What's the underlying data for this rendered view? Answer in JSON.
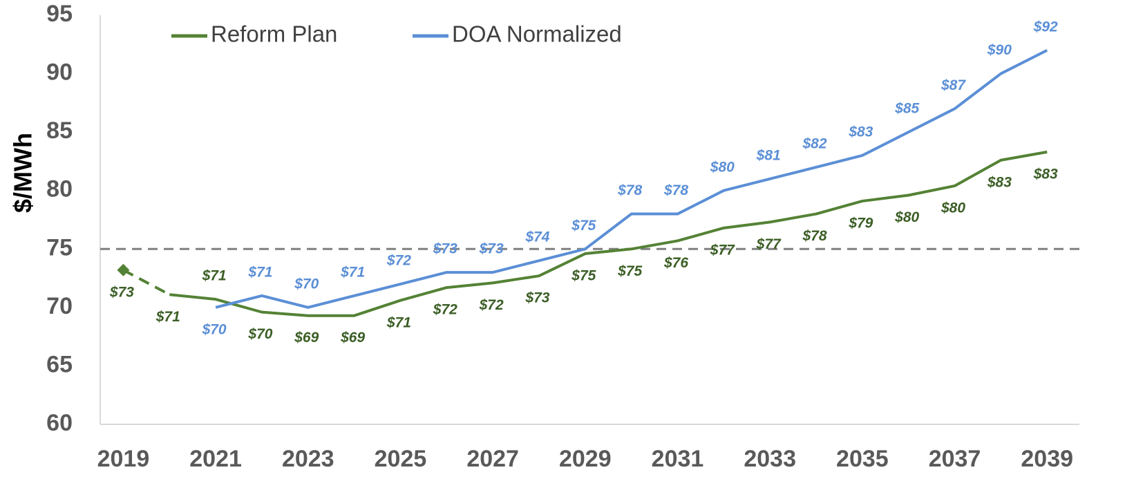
{
  "chart_data": {
    "type": "line",
    "y_label": "$/MWh",
    "x": [
      2019,
      2020,
      2021,
      2022,
      2023,
      2024,
      2025,
      2026,
      2027,
      2028,
      2029,
      2030,
      2031,
      2032,
      2033,
      2034,
      2035,
      2036,
      2037,
      2038,
      2039
    ],
    "xlim": [
      2018.5,
      2039.7
    ],
    "xticks": [
      2019,
      2021,
      2023,
      2025,
      2027,
      2029,
      2031,
      2033,
      2035,
      2037,
      2039
    ],
    "ylim": [
      60,
      95
    ],
    "yticks": [
      60,
      65,
      70,
      75,
      80,
      85,
      90,
      95
    ],
    "reference_line": 75,
    "reference_color": "#808080",
    "legend": "top-left",
    "series": [
      {
        "name": "Reform Plan",
        "color": "#548235",
        "label_color": "#3b5e25",
        "dashed_first_segment": true,
        "first_marker": "diamond",
        "values": [
          73.2,
          71.1,
          70.7,
          69.6,
          69.3,
          69.3,
          70.6,
          71.7,
          72.1,
          72.7,
          74.6,
          75.0,
          75.7,
          76.8,
          77.3,
          78.0,
          79.1,
          79.6,
          80.4,
          82.6,
          83.3
        ],
        "value_labels": [
          "$73",
          "$71",
          "$71",
          "$70",
          "$69",
          "$69",
          "$71",
          "$72",
          "$72",
          "$73",
          "$75",
          "$75",
          "$76",
          "$77",
          "$77",
          "$78",
          "$79",
          "$80",
          "$80",
          "$83",
          "$83"
        ]
      },
      {
        "name": "DOA Normalized",
        "color": "#5b8fd6",
        "label_color": "#5b8fd6",
        "values": [
          null,
          null,
          70,
          71,
          70,
          71,
          72,
          73,
          73,
          74,
          75,
          78,
          78,
          80,
          81,
          82,
          83,
          85,
          87,
          90,
          92
        ],
        "value_labels": [
          null,
          null,
          "$70",
          "$71",
          "$70",
          "$71",
          "$72",
          "$73",
          "$73",
          "$74",
          "$75",
          "$78",
          "$78",
          "$80",
          "$81",
          "$82",
          "$83",
          "$85",
          "$87",
          "$90",
          "$92"
        ]
      }
    ]
  }
}
